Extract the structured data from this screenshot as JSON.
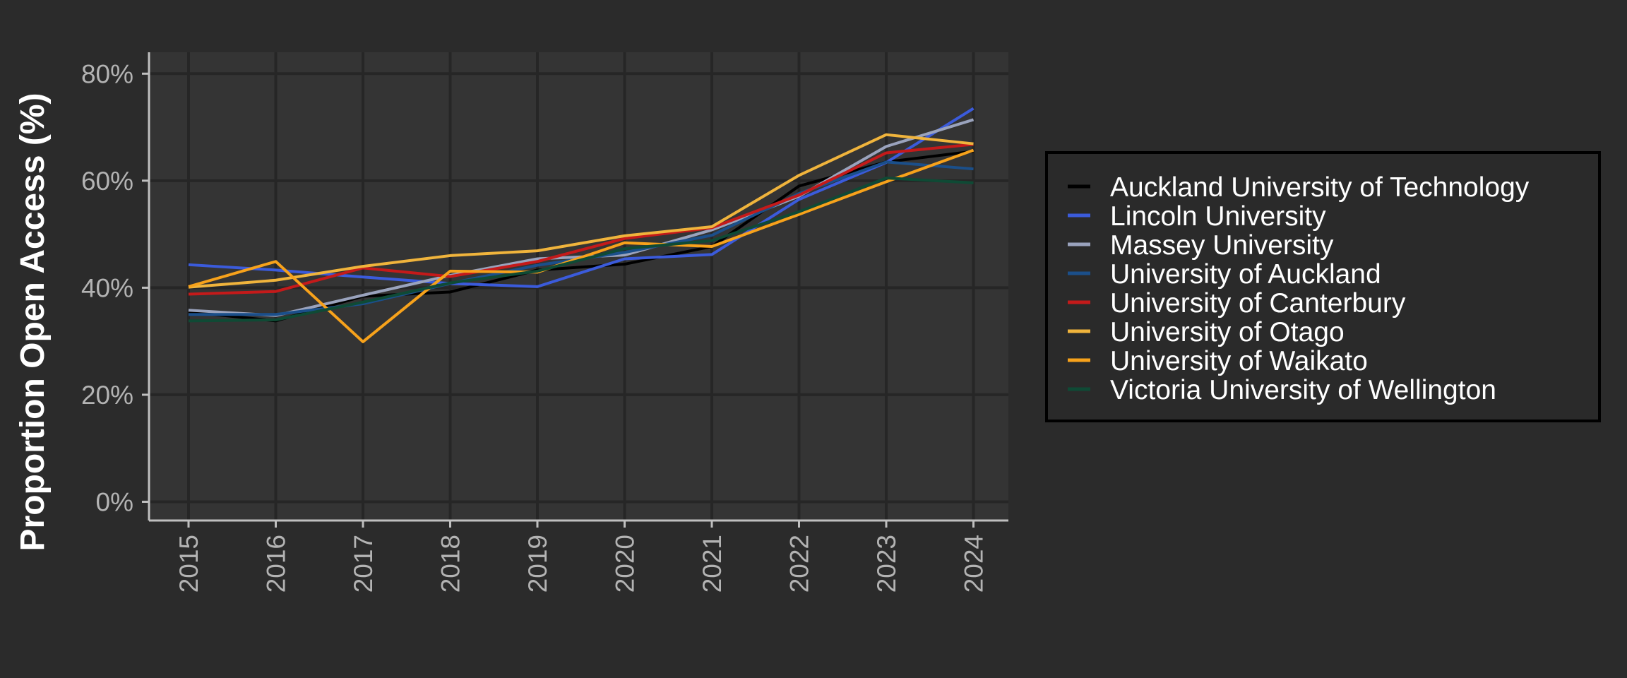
{
  "chart_data": {
    "type": "line",
    "title": "",
    "xlabel": "",
    "ylabel": "Proportion Open Access (%)",
    "x": [
      "2015",
      "2016",
      "2017",
      "2018",
      "2019",
      "2020",
      "2021",
      "2022",
      "2023",
      "2024"
    ],
    "ylim": [
      -3.5,
      84
    ],
    "yticks": [
      0,
      20,
      40,
      60,
      80
    ],
    "ytick_labels": [
      "0%",
      "20%",
      "40%",
      "60%",
      "80%"
    ],
    "grid": true,
    "legend_position": "right",
    "series": [
      {
        "name": "Auckland University of Technology",
        "color": "#000000",
        "values": [
          35.5,
          33.8,
          38.4,
          39.2,
          43.3,
          44.4,
          47.7,
          59.0,
          63.5,
          65.5
        ]
      },
      {
        "name": "Lincoln University",
        "color": "#3b5bdb",
        "values": [
          44.3,
          43.3,
          42.0,
          40.8,
          40.2,
          45.4,
          46.2,
          56.5,
          63.4,
          73.5
        ]
      },
      {
        "name": "Massey University",
        "color": "#9aa3bd",
        "values": [
          35.8,
          34.8,
          38.6,
          42.3,
          45.4,
          46.1,
          50.8,
          57.1,
          66.4,
          71.4
        ]
      },
      {
        "name": "University of Auckland",
        "color": "#1b4f8a",
        "values": [
          35.0,
          35.0,
          37.0,
          40.8,
          44.2,
          46.6,
          49.8,
          57.6,
          63.5,
          62.2
        ]
      },
      {
        "name": "University of Canterbury",
        "color": "#c41a1a",
        "values": [
          38.8,
          39.3,
          43.7,
          42.1,
          44.9,
          49.2,
          51.2,
          57.3,
          65.2,
          66.8
        ]
      },
      {
        "name": "University of Otago",
        "color": "#f0b43c",
        "values": [
          40.1,
          41.4,
          44.0,
          46.0,
          46.9,
          49.7,
          51.4,
          61.0,
          68.6,
          66.9
        ]
      },
      {
        "name": "University of Waikato",
        "color": "#f7a21b",
        "values": [
          40.2,
          44.9,
          29.9,
          43.1,
          42.9,
          48.4,
          47.7,
          53.7,
          59.8,
          65.7
        ]
      },
      {
        "name": "Victoria University of Wellington",
        "color": "#0f4a35",
        "values": [
          33.8,
          34.0,
          37.3,
          40.9,
          43.1,
          47.3,
          48.8,
          54.2,
          60.5,
          59.6
        ]
      }
    ]
  }
}
